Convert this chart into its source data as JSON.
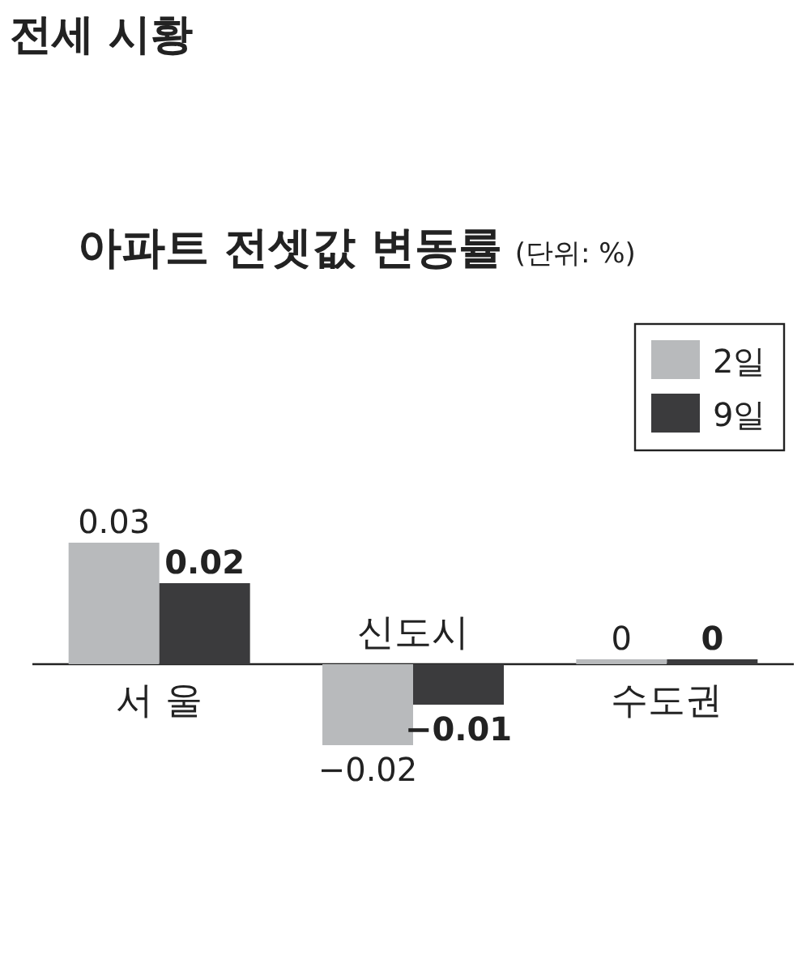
{
  "chart_data": {
    "type": "bar",
    "title": "전세 시황",
    "subtitle": "아파트 전셋값 변동률",
    "annotations": [
      "(단위: %)"
    ],
    "categories": [
      "서 울",
      "신도시",
      "수도권"
    ],
    "series": [
      {
        "name": "2일",
        "color": "#b8babc",
        "values": [
          0.03,
          -0.02,
          0
        ]
      },
      {
        "name": "9일",
        "color": "#3b3b3d",
        "values": [
          0.02,
          -0.01,
          0
        ]
      }
    ],
    "data_labels": true,
    "legend": "top right"
  }
}
